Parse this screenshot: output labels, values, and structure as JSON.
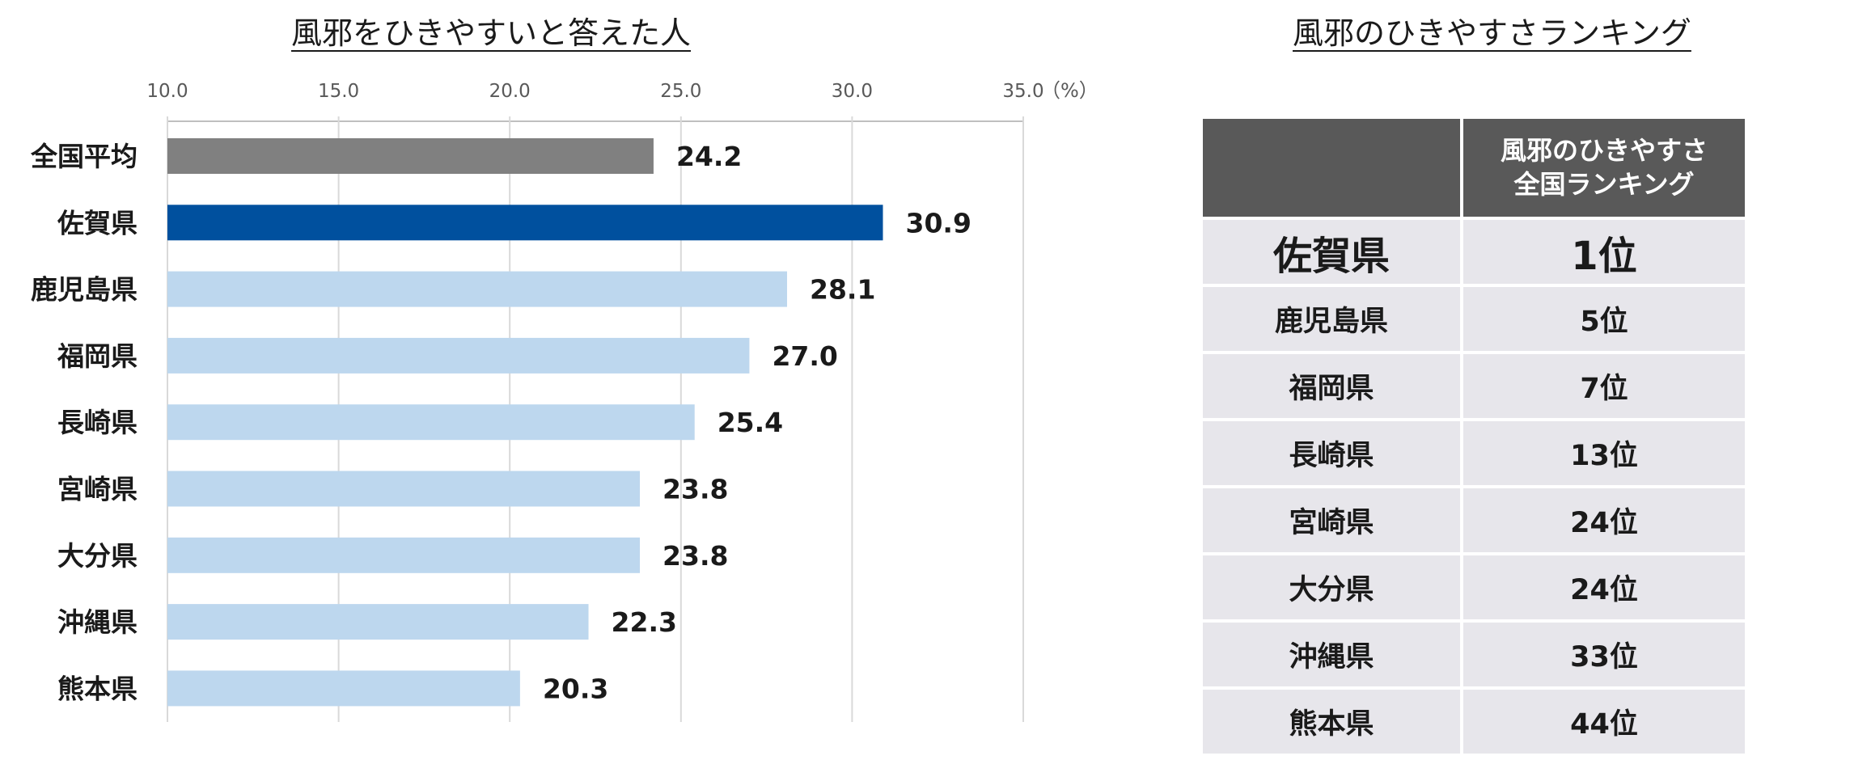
{
  "chart_data": {
    "type": "bar",
    "orientation": "horizontal",
    "title": "風邪をひきやすいと答えた人",
    "categories": [
      "全国平均",
      "佐賀県",
      "鹿児島県",
      "福岡県",
      "長崎県",
      "宮崎県",
      "大分県",
      "沖縄県",
      "熊本県"
    ],
    "values": [
      24.2,
      30.9,
      28.1,
      27.0,
      25.4,
      23.8,
      23.8,
      22.3,
      20.3
    ],
    "value_labels": [
      "24.2",
      "30.9",
      "28.1",
      "27.0",
      "25.4",
      "23.8",
      "23.8",
      "22.3",
      "20.3"
    ],
    "bar_colors": [
      "#808080",
      "#00509e",
      "#bdd7ee",
      "#bdd7ee",
      "#bdd7ee",
      "#bdd7ee",
      "#bdd7ee",
      "#bdd7ee",
      "#bdd7ee"
    ],
    "xlim": [
      10.0,
      35.0
    ],
    "x_ticks": [
      10.0,
      15.0,
      20.0,
      25.0,
      30.0,
      35.0
    ],
    "x_tick_labels": [
      "10.0",
      "15.0",
      "20.0",
      "25.0",
      "30.0",
      "35.0"
    ],
    "unit_label": "（%）",
    "axis_position": "top",
    "grid": true
  },
  "ranking": {
    "title": "風邪のひきやすさランキング",
    "header": [
      "",
      "風邪のひきやすさ\n全国ランキング"
    ],
    "header_lines": [
      "風邪のひきやすさ",
      "全国ランキング"
    ],
    "rows": [
      {
        "prefecture": "佐賀県",
        "rank": "1位"
      },
      {
        "prefecture": "鹿児島県",
        "rank": "5位"
      },
      {
        "prefecture": "福岡県",
        "rank": "7位"
      },
      {
        "prefecture": "長崎県",
        "rank": "13位"
      },
      {
        "prefecture": "宮崎県",
        "rank": "24位"
      },
      {
        "prefecture": "大分県",
        "rank": "24位"
      },
      {
        "prefecture": "沖縄県",
        "rank": "33位"
      },
      {
        "prefecture": "熊本県",
        "rank": "44位"
      }
    ]
  }
}
